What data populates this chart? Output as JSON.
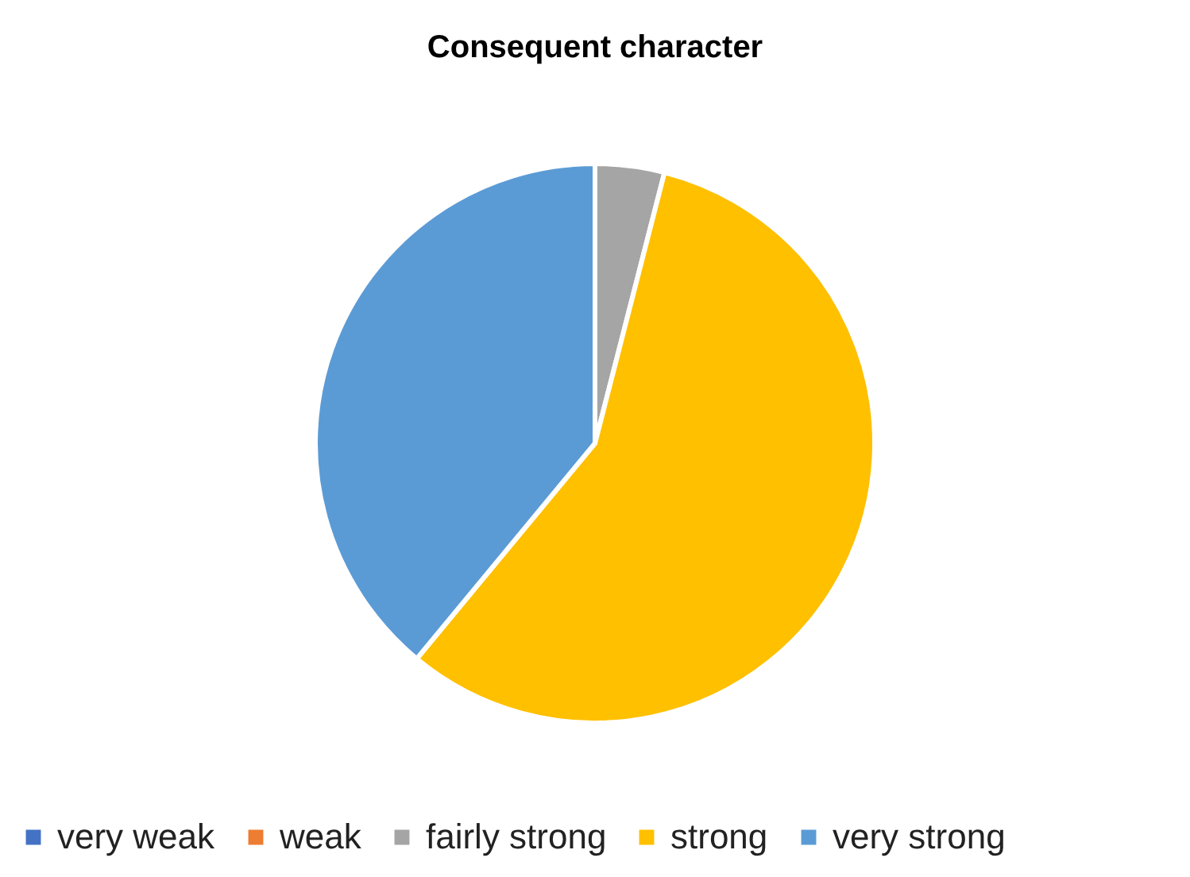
{
  "chart_data": {
    "type": "pie",
    "title": "Consequent character",
    "categories": [
      "very weak",
      "weak",
      "fairly strong",
      "strong",
      "very strong"
    ],
    "values": [
      0,
      0,
      4,
      57,
      39
    ],
    "colors": [
      "#4472c4",
      "#ed7d31",
      "#a5a5a5",
      "#ffc000",
      "#5b9bd5"
    ],
    "legend": "bottom"
  }
}
